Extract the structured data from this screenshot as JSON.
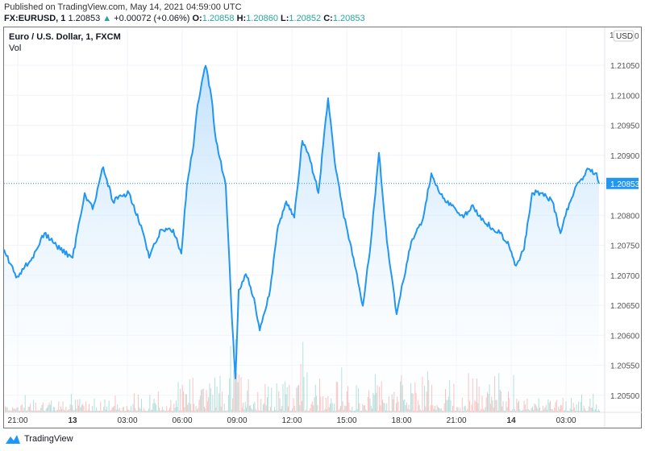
{
  "header": {
    "published": "Published on TradingView.com, May 14, 2021 04:59:00 UTC",
    "symbol": "FX:EURUSD, 1",
    "last": "1.20853",
    "change": "+0.00072 (+0.06%)",
    "o_label": "O:",
    "o": "1.20858",
    "h_label": "H:",
    "h": "1.20860",
    "l_label": "L:",
    "l": "1.20852",
    "c_label": "C:",
    "c": "1.20853"
  },
  "legend": {
    "title": "Euro / U.S. Dollar, 1, FXCM",
    "vol": "Vol"
  },
  "currency": {
    "pre": "1",
    "label": "USD",
    "post": "0"
  },
  "footer": {
    "brand": "TradingView"
  },
  "colors": {
    "line": "#2196f3",
    "up": "#26a69a",
    "down": "#ef5350",
    "fill": "#e3f2fd"
  },
  "chart_data": {
    "type": "line",
    "title": "Euro / U.S. Dollar, 1, FXCM",
    "x_unit": "hours since May 12 21:00 UTC",
    "xlim": [
      -0.75,
      33.3
    ],
    "ylim": [
      1.20475,
      1.21115
    ],
    "x_ticks": [
      {
        "x": 0,
        "label": "21:00"
      },
      {
        "x": 3,
        "label": "13",
        "bold": true
      },
      {
        "x": 6,
        "label": "03:00"
      },
      {
        "x": 9,
        "label": "06:00"
      },
      {
        "x": 12,
        "label": "09:00"
      },
      {
        "x": 15,
        "label": "12:00"
      },
      {
        "x": 18,
        "label": "15:00"
      },
      {
        "x": 21,
        "label": "18:00"
      },
      {
        "x": 24,
        "label": "21:00"
      },
      {
        "x": 27,
        "label": "14",
        "bold": true
      },
      {
        "x": 30,
        "label": "03:00"
      }
    ],
    "y_ticks": [
      "1.21050",
      "1.21000",
      "1.20950",
      "1.20900",
      "1.20800",
      "1.20750",
      "1.20700",
      "1.20650",
      "1.20600",
      "1.20550",
      "1.20500"
    ],
    "last_price": "1.20853",
    "x": [
      -0.75,
      -0.09,
      0.79,
      1.46,
      2.12,
      3.0,
      3.66,
      4.1,
      4.68,
      5.2,
      6.09,
      6.75,
      7.19,
      7.85,
      8.51,
      8.95,
      9.26,
      9.62,
      9.84,
      10.28,
      10.59,
      10.85,
      11.38,
      11.73,
      11.91,
      12.09,
      12.48,
      12.93,
      13.24,
      13.81,
      14.25,
      14.69,
      15.13,
      15.57,
      16.01,
      16.45,
      16.98,
      17.34,
      17.78,
      18.44,
      18.88,
      19.32,
      19.76,
      20.2,
      20.73,
      21.08,
      21.53,
      22.19,
      22.63,
      23.07,
      23.73,
      24.39,
      24.83,
      25.5,
      26.38,
      26.82,
      27.26,
      27.7,
      28.14,
      28.59,
      29.25,
      29.69,
      29.91,
      30.57,
      31.23,
      31.67,
      31.8
    ],
    "y": [
      1.20743,
      1.20696,
      1.20729,
      1.2077,
      1.20749,
      1.20729,
      1.20837,
      1.2081,
      1.2088,
      1.20823,
      1.20837,
      1.20783,
      1.20729,
      1.20776,
      1.20776,
      1.20736,
      1.2085,
      1.20917,
      1.20984,
      1.21049,
      1.20998,
      1.20924,
      1.2085,
      1.20622,
      1.20528,
      1.20676,
      1.20702,
      1.20662,
      1.20608,
      1.20676,
      1.20783,
      1.20823,
      1.20796,
      1.20924,
      1.2089,
      1.20837,
      1.20995,
      1.2089,
      1.2081,
      1.20716,
      1.20649,
      1.20756,
      1.20904,
      1.20756,
      1.20635,
      1.20689,
      1.20756,
      1.20796,
      1.2087,
      1.20837,
      1.20816,
      1.20796,
      1.20816,
      1.2079,
      1.2077,
      1.20756,
      1.20716,
      1.20743,
      1.20837,
      1.20837,
      1.20823,
      1.2077,
      1.20796,
      1.2085,
      1.20877,
      1.2087,
      1.20853
    ]
  }
}
